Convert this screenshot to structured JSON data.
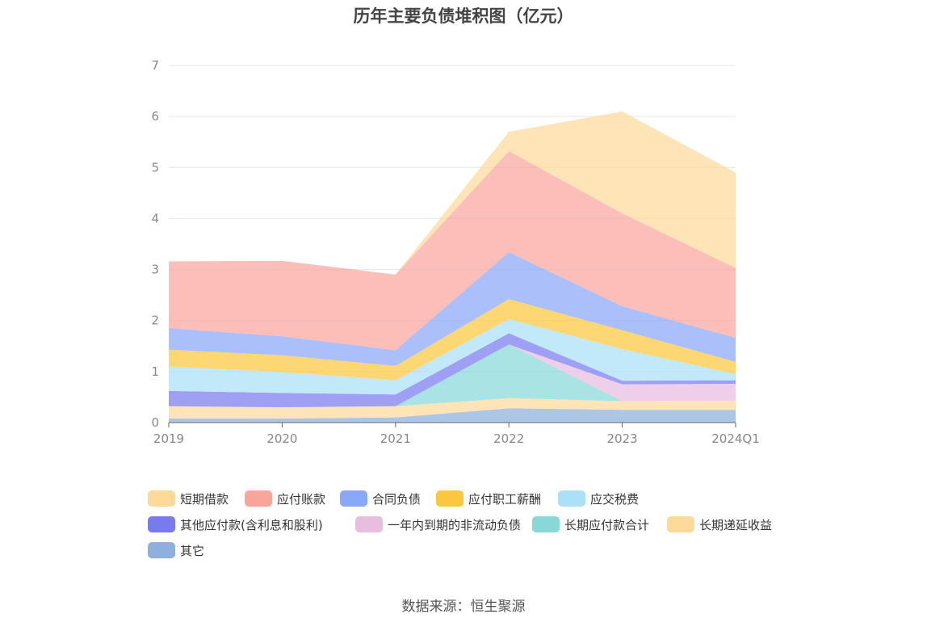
{
  "title": "历年主要负债堆积图（亿元）",
  "source": "数据来源：恒生聚源",
  "chart_data": {
    "type": "area",
    "stacked": true,
    "categories": [
      "2019",
      "2020",
      "2021",
      "2022",
      "2023",
      "2024Q1"
    ],
    "ylim": [
      0,
      7
    ],
    "yticks": [
      0,
      1,
      2,
      3,
      4,
      5,
      6,
      7
    ],
    "grid": true,
    "legend_position": "bottom",
    "series": [
      {
        "name": "其它",
        "color": "#8fb0dc",
        "values": [
          0.08,
          0.08,
          0.1,
          0.28,
          0.25,
          0.25
        ]
      },
      {
        "name": "长期递延收益",
        "color": "#fdd99a",
        "values": [
          0.24,
          0.22,
          0.22,
          0.2,
          0.17,
          0.18
        ]
      },
      {
        "name": "长期应付款合计",
        "color": "#88d8d8",
        "values": [
          0.0,
          0.0,
          0.0,
          1.05,
          0.0,
          0.0
        ]
      },
      {
        "name": "一年内到期的非流动负债",
        "color": "#e8bde0",
        "values": [
          0.0,
          0.0,
          0.0,
          0.0,
          0.33,
          0.33
        ]
      },
      {
        "name": "其他应付款(含利息和股利)",
        "color": "#7a7af0",
        "values": [
          0.3,
          0.28,
          0.23,
          0.22,
          0.07,
          0.07
        ]
      },
      {
        "name": "应交税费",
        "color": "#aae0f8",
        "values": [
          0.48,
          0.41,
          0.28,
          0.28,
          0.62,
          0.12
        ]
      },
      {
        "name": "应付职工薪酬",
        "color": "#fbc73e",
        "values": [
          0.33,
          0.33,
          0.28,
          0.39,
          0.37,
          0.24
        ]
      },
      {
        "name": "合同负债",
        "color": "#8aa8f8",
        "values": [
          0.42,
          0.37,
          0.31,
          0.92,
          0.47,
          0.47
        ]
      },
      {
        "name": "应付账款",
        "color": "#f9a59c",
        "values": [
          1.31,
          1.48,
          1.48,
          1.98,
          1.82,
          1.37
        ]
      },
      {
        "name": "短期借款",
        "color": "#fdd99a",
        "values": [
          0.0,
          0.0,
          0.0,
          0.38,
          2.0,
          1.87
        ]
      }
    ],
    "legend_order": [
      "短期借款",
      "应付账款",
      "合同负债",
      "应付职工薪酬",
      "应交税费",
      "其他应付款(含利息和股利)",
      "一年内到期的非流动负债",
      "长期应付款合计",
      "长期递延收益",
      "其它"
    ]
  }
}
